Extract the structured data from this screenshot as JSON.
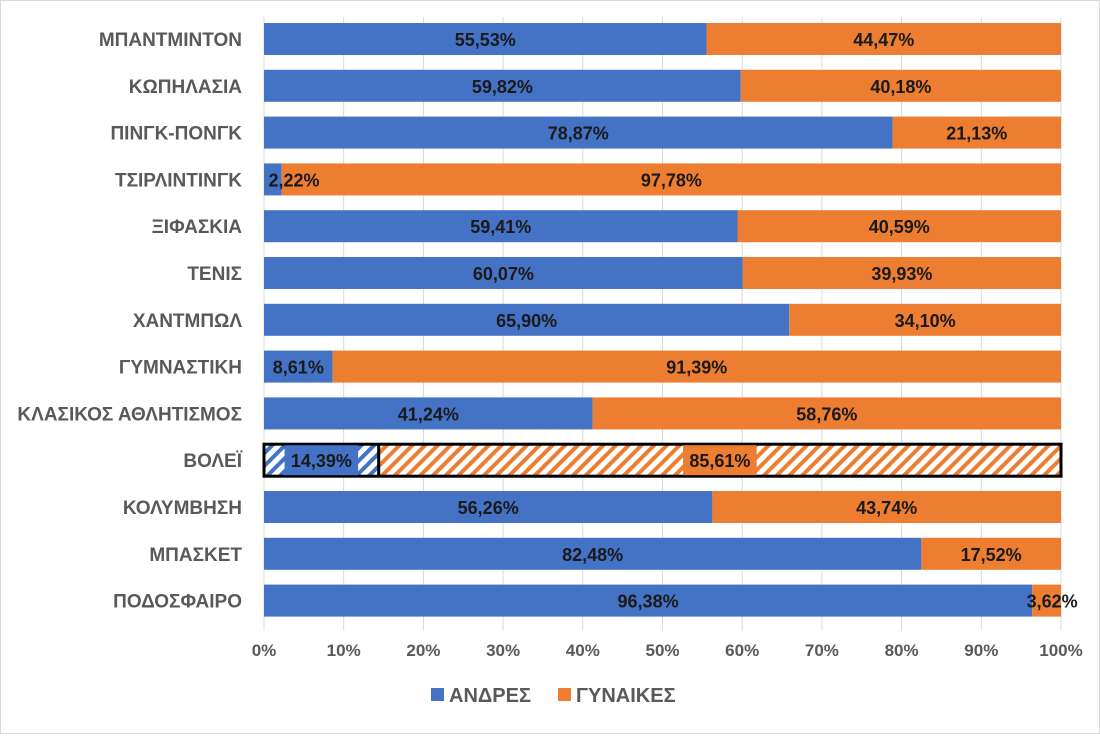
{
  "chart_data": {
    "type": "bar",
    "orientation": "horizontal",
    "stacking": "percent",
    "categories": [
      "ΜΠΑΝΤΜΙΝΤΟΝ",
      "ΚΩΠΗΛΑΣΙΑ",
      "ΠΙΝΓΚ-ΠΟΝΓΚ",
      "ΤΣΙΡΛΙΝΤΙΝΓΚ",
      "ΞΙΦΑΣΚΙΑ",
      "ΤΕΝΙΣ",
      "ΧΑΝΤΜΠΩΛ",
      "ΓΥΜΝΑΣΤΙΚΗ",
      "ΚΛΑΣΙΚΟΣ ΑΘΛΗΤΙΣΜΟΣ",
      "ΒΟΛΕΪ",
      "ΚΟΛΥΜΒΗΣΗ",
      "ΜΠΑΣΚΕΤ",
      "ΠΟΔΟΣΦΑΙΡΟ"
    ],
    "series": [
      {
        "name": "ΑΝΔΡΕΣ",
        "color": "#4472C4",
        "values": [
          55.53,
          59.82,
          78.87,
          2.22,
          59.41,
          60.07,
          65.9,
          8.61,
          41.24,
          14.39,
          56.26,
          82.48,
          96.38
        ],
        "labels": [
          "55,53%",
          "59,82%",
          "78,87%",
          "2,22%",
          "59,41%",
          "60,07%",
          "65,90%",
          "8,61%",
          "41,24%",
          "14,39%",
          "56,26%",
          "82,48%",
          "96,38%"
        ]
      },
      {
        "name": "ΓΥΝΑΙΚΕΣ",
        "color": "#ED7D31",
        "values": [
          44.47,
          40.18,
          21.13,
          97.78,
          40.59,
          39.93,
          34.1,
          91.39,
          58.76,
          85.61,
          43.74,
          17.52,
          3.62
        ],
        "labels": [
          "44,47%",
          "40,18%",
          "21,13%",
          "97,78%",
          "40,59%",
          "39,93%",
          "34,10%",
          "91,39%",
          "58,76%",
          "85,61%",
          "43,74%",
          "17,52%",
          "3,62%"
        ]
      }
    ],
    "highlighted_category": "ΒΟΛΕΪ",
    "highlight_style": "hatched",
    "x_ticks": [
      "0%",
      "10%",
      "20%",
      "30%",
      "40%",
      "50%",
      "60%",
      "70%",
      "80%",
      "90%",
      "100%"
    ],
    "xlim": [
      0,
      100
    ],
    "grid": "vertical",
    "legend_position": "bottom",
    "title": "",
    "xlabel": "",
    "ylabel": ""
  }
}
